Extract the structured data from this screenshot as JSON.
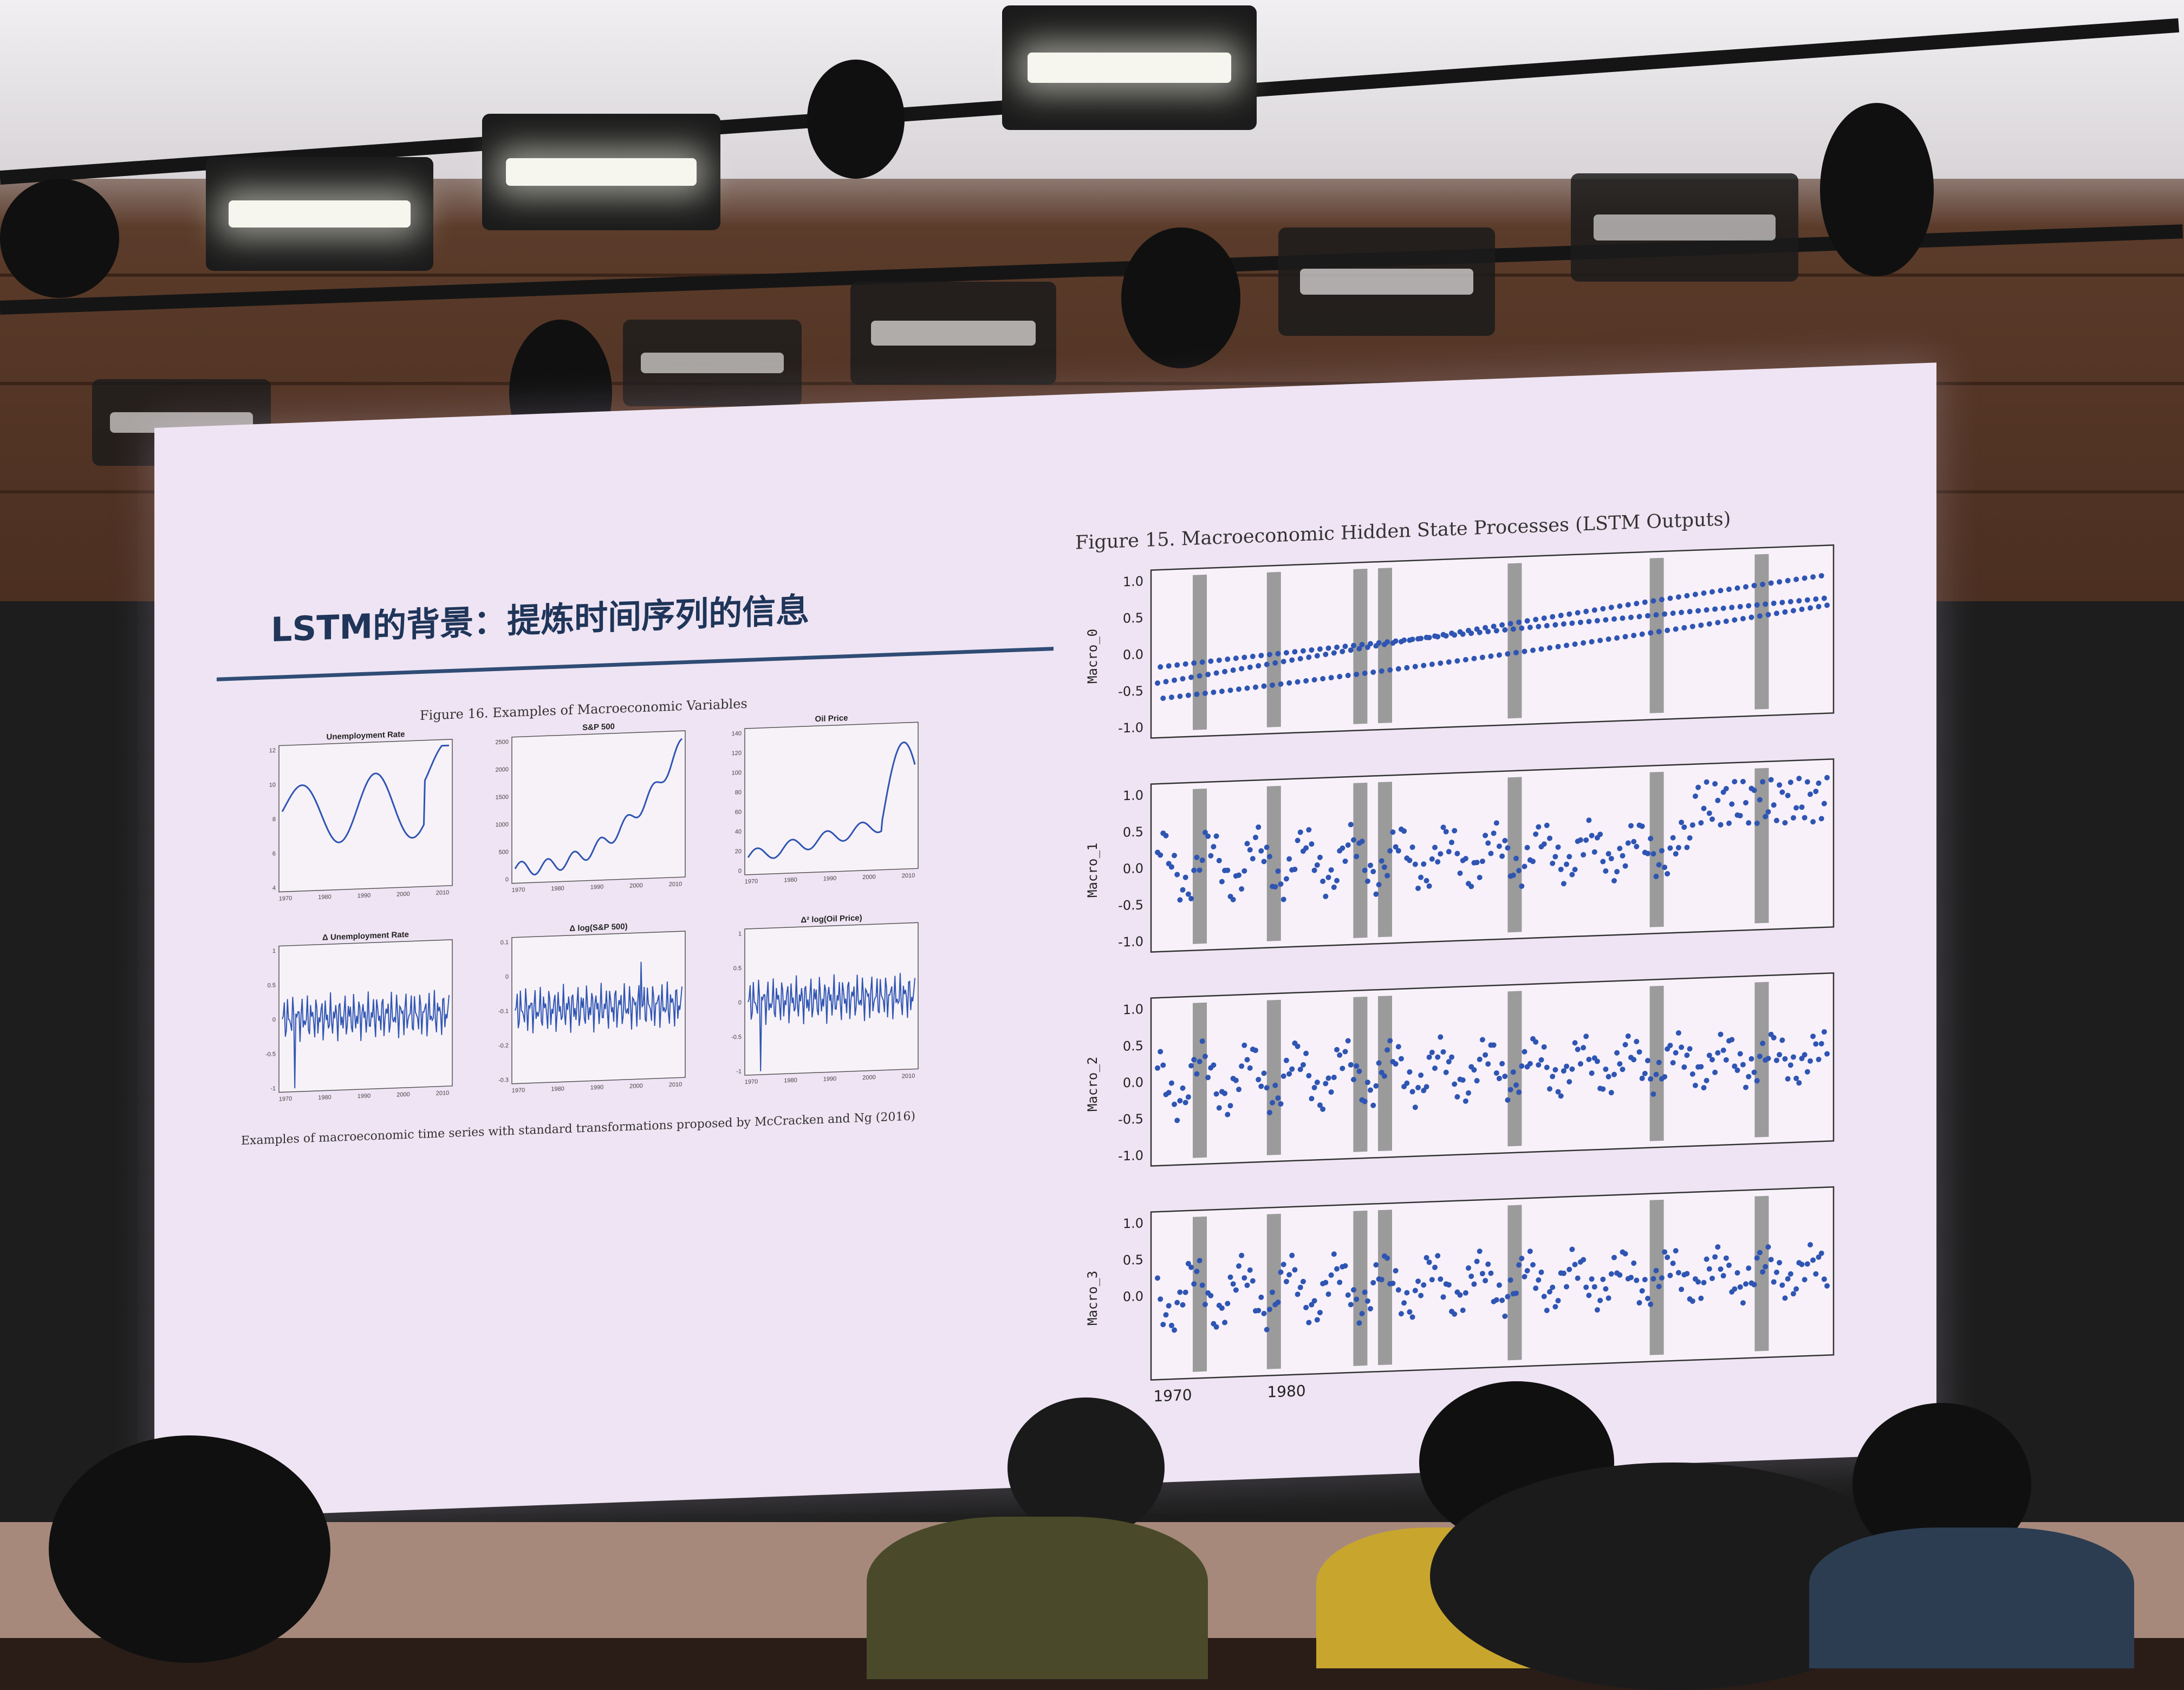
{
  "slide": {
    "title": "LSTM的背景：提炼时间序列的信息",
    "left_figure_title": "Figure 16. Examples of Macroeconomic Variables",
    "left_caption": "Examples of macroeconomic time series with standard transformations proposed by McCracken and Ng (2016)",
    "right_figure_title": "Figure 15. Macroeconomic Hidden State Processes (LSTM Outputs)"
  },
  "left_panels": [
    {
      "title": "Unemployment Rate",
      "yticks": [
        "12",
        "10",
        "8",
        "6",
        "4"
      ],
      "xticks": [
        "1970",
        "1980",
        "1990",
        "2000",
        "2010"
      ]
    },
    {
      "title": "S&P 500",
      "yticks": [
        "2500",
        "2000",
        "1500",
        "1000",
        "500",
        "0"
      ],
      "xticks": [
        "1970",
        "1980",
        "1990",
        "2000",
        "2010"
      ]
    },
    {
      "title": "Oil Price",
      "yticks": [
        "140",
        "120",
        "100",
        "80",
        "60",
        "40",
        "20",
        "0"
      ],
      "xticks": [
        "1970",
        "1980",
        "1990",
        "2000",
        "2010"
      ]
    },
    {
      "title": "Δ Unemployment Rate",
      "yticks": [
        "1",
        "0.5",
        "0",
        "-0.5",
        "-1"
      ],
      "xticks": [
        "1970",
        "1980",
        "1990",
        "2000",
        "2010"
      ]
    },
    {
      "title": "Δ log(S&P 500)",
      "yticks": [
        "0.1",
        "0",
        "-0.1",
        "-0.2",
        "-0.3"
      ],
      "xticks": [
        "1970",
        "1980",
        "1990",
        "2000",
        "2010"
      ]
    },
    {
      "title": "Δ² log(Oil Price)",
      "yticks": [
        "1",
        "0.5",
        "0",
        "-0.5",
        "-1"
      ],
      "xticks": [
        "1970",
        "1980",
        "1990",
        "2000",
        "2010"
      ]
    }
  ],
  "right_panels": [
    {
      "ylabel": "Macro_0",
      "yticks": [
        "1.0",
        "0.5",
        "0.0",
        "-0.5",
        "-1.0"
      ]
    },
    {
      "ylabel": "Macro_1",
      "yticks": [
        "1.0",
        "0.5",
        "0.0",
        "-0.5",
        "-1.0"
      ]
    },
    {
      "ylabel": "Macro_2",
      "yticks": [
        "1.0",
        "0.5",
        "0.0",
        "-0.5",
        "-1.0"
      ]
    },
    {
      "ylabel": "Macro_3",
      "yticks": [
        "1.0",
        "0.5",
        "0.0"
      ]
    }
  ],
  "right_xticks": [
    "1970",
    "1980"
  ],
  "colors": {
    "screen": "#efe4f3",
    "title": "#1f3559",
    "series": "#2f55b3",
    "band": "#9b9b9b"
  }
}
